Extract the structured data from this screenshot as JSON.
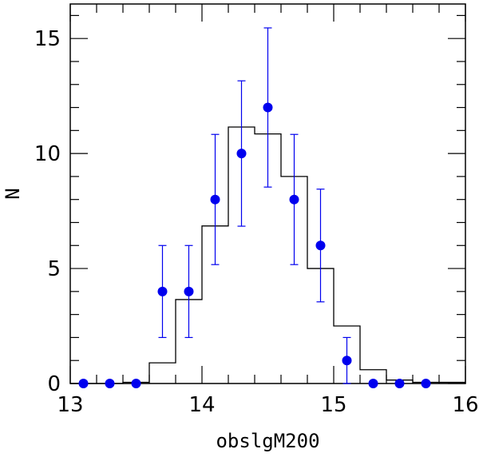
{
  "chart_data": {
    "type": "scatter",
    "title": "",
    "xlabel": "obslgM200",
    "ylabel": "N",
    "xlim": [
      13,
      16
    ],
    "ylim": [
      0,
      16.5
    ],
    "xticks": [
      13,
      14,
      15,
      16
    ],
    "xtick_labels": [
      "13",
      "14",
      "15",
      "16"
    ],
    "yticks": [
      0,
      5,
      10,
      15
    ],
    "ytick_labels": [
      "0",
      "5",
      "10",
      "15"
    ],
    "grid": false,
    "series": [
      {
        "kind": "points_with_errorbars",
        "color": "#0000ee",
        "points": [
          {
            "x": 13.1,
            "y": 0,
            "err": 0
          },
          {
            "x": 13.3,
            "y": 0,
            "err": 0
          },
          {
            "x": 13.5,
            "y": 0,
            "err": 0
          },
          {
            "x": 13.7,
            "y": 4,
            "err_low": 2.0,
            "err_high": 2.0
          },
          {
            "x": 13.9,
            "y": 4,
            "err_low": 2.0,
            "err_high": 2.0
          },
          {
            "x": 14.1,
            "y": 8,
            "err_low": 2.83,
            "err_high": 2.83
          },
          {
            "x": 14.3,
            "y": 10,
            "err_low": 3.16,
            "err_high": 3.16
          },
          {
            "x": 14.5,
            "y": 12,
            "err_low": 3.46,
            "err_high": 3.46
          },
          {
            "x": 14.7,
            "y": 8,
            "err_low": 2.83,
            "err_high": 2.83
          },
          {
            "x": 14.9,
            "y": 6,
            "err_low": 2.45,
            "err_high": 2.45
          },
          {
            "x": 15.1,
            "y": 1,
            "err_low": 1.0,
            "err_high": 1.0
          },
          {
            "x": 15.3,
            "y": 0,
            "err": 0
          },
          {
            "x": 15.5,
            "y": 0,
            "err": 0
          },
          {
            "x": 15.7,
            "y": 0,
            "err": 0
          }
        ]
      },
      {
        "kind": "step_histogram",
        "color": "#000000",
        "bin_edges": [
          13.0,
          13.2,
          13.4,
          13.6,
          13.8,
          14.0,
          14.2,
          14.4,
          14.6,
          14.8,
          15.0,
          15.2,
          15.4,
          15.6,
          16.0
        ],
        "values": [
          0.0,
          0.0,
          0.05,
          0.9,
          3.65,
          6.85,
          11.15,
          10.85,
          9.0,
          5.0,
          2.5,
          0.6,
          0.15,
          0.05
        ]
      }
    ]
  }
}
